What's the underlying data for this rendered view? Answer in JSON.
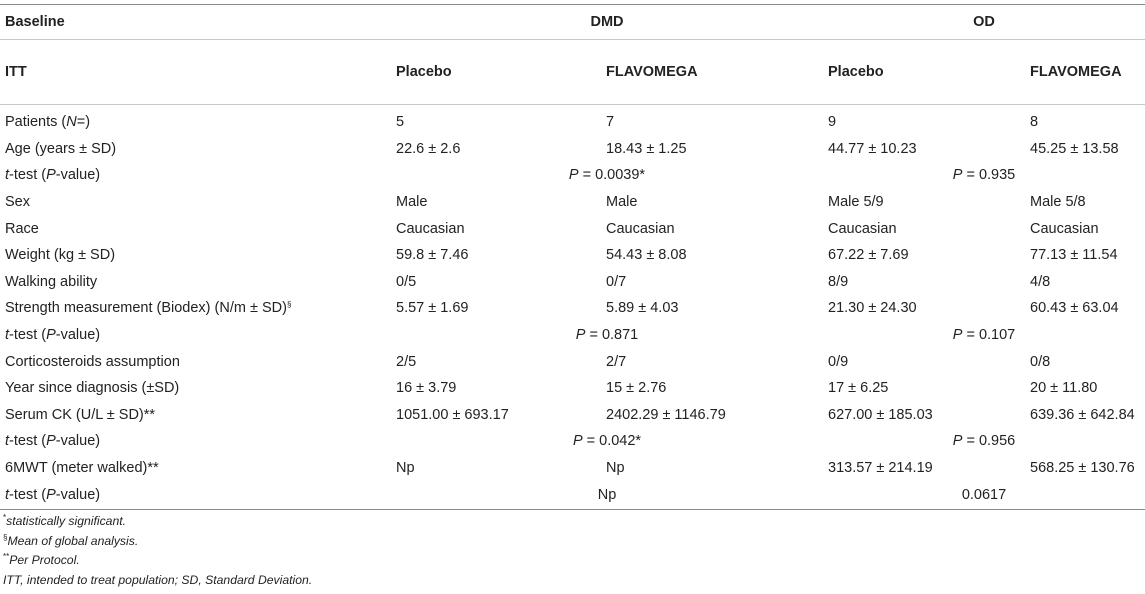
{
  "header": {
    "baseline": "Baseline",
    "group_dmd": "DMD",
    "group_od": "OD",
    "itt": "ITT",
    "arm_dmd_placebo": "Placebo",
    "arm_dmd_flavomega": "FLAVOMEGA",
    "arm_od_placebo": "Placebo",
    "arm_od_flavomega": "FLAVOMEGA"
  },
  "rows": [
    {
      "label_pre": "Patients (",
      "label_it": "N",
      "label_post": "=)",
      "values": [
        "5",
        "7",
        "9",
        "8"
      ]
    },
    {
      "label": "Age (years ± SD)",
      "values": [
        "22.6 ± 2.6",
        "18.43 ± 1.25",
        "44.77 ± 10.23",
        "45.25 ± 13.58"
      ]
    },
    {
      "label_it": "t",
      "label_mid": "-test (",
      "label_it2": "P",
      "label_post": "-value)",
      "dmd_p_it": "P",
      "dmd_p": " = 0.0039*",
      "od_p_it": "P",
      "od_p": " = 0.935"
    },
    {
      "label": "Sex",
      "values": [
        "Male",
        "Male",
        "Male 5/9",
        "Male 5/8"
      ]
    },
    {
      "label": "Race",
      "values": [
        "Caucasian",
        "Caucasian",
        "Caucasian",
        "Caucasian"
      ]
    },
    {
      "label": "Weight (kg ± SD)",
      "values": [
        "59.8 ± 7.46",
        "54.43 ± 8.08",
        "67.22 ± 7.69",
        "77.13 ± 11.54"
      ]
    },
    {
      "label": "Walking ability",
      "values": [
        "0/5",
        "0/7",
        "8/9",
        "4/8"
      ]
    },
    {
      "label": "Strength measurement (Biodex) (N/m ± SD)",
      "label_sup": "§",
      "values": [
        "5.57 ± 1.69",
        "5.89 ± 4.03",
        "21.30 ± 24.30",
        "60.43 ± 63.04"
      ]
    },
    {
      "label_it": "t",
      "label_mid": "-test (",
      "label_it2": "P",
      "label_post": "-value)",
      "dmd_p_it": "P",
      "dmd_p": " = 0.871",
      "od_p_it": "P",
      "od_p": " = 0.107"
    },
    {
      "label": "Corticosteroids assumption",
      "values": [
        "2/5",
        "2/7",
        "0/9",
        "0/8"
      ]
    },
    {
      "label": "Year since diagnosis (±SD)",
      "values": [
        "16 ± 3.79",
        "15 ± 2.76",
        "17 ± 6.25",
        "20 ± 11.80"
      ]
    },
    {
      "label": "Serum CK (U/L ± SD)**",
      "values": [
        "1051.00 ± 693.17",
        "2402.29 ± 1146.79",
        "627.00 ± 185.03",
        "639.36 ± 642.84"
      ]
    },
    {
      "label_it": "t",
      "label_mid": "-test (",
      "label_it2": "P",
      "label_post": "-value)",
      "dmd_p_it": "P",
      "dmd_p": " = 0.042*",
      "od_p_it": "P",
      "od_p": " = 0.956"
    },
    {
      "label": "6MWT (meter walked)**",
      "values": [
        "Np",
        "Np",
        "313.57 ± 214.19",
        "568.25 ± 130.76"
      ]
    },
    {
      "label_it": "t",
      "label_mid": "-test (",
      "label_it2": "P",
      "label_post": "-value)",
      "dmd_p": "Np",
      "od_p": "0.0617"
    }
  ],
  "footnotes": {
    "fn1_sup": "*",
    "fn1": "statistically significant.",
    "fn2_sup": "§",
    "fn2": "Mean of global analysis.",
    "fn3_sup": "**",
    "fn3": "Per Protocol.",
    "fn4": "ITT, intended to treat population; SD, Standard Deviation."
  }
}
